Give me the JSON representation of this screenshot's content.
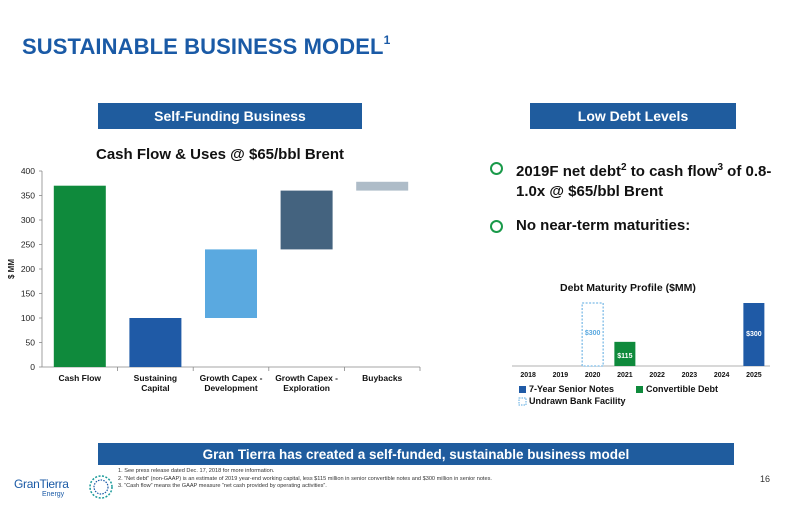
{
  "slide": {
    "title": "SUSTAINABLE BUSINESS MODEL",
    "title_sup": "1",
    "page_number": "16"
  },
  "left_panel": {
    "header": "Self-Funding Business"
  },
  "right_panel": {
    "header": "Low Debt Levels",
    "bullets": [
      {
        "parts": [
          "2019F net debt",
          "2",
          " to cash flow",
          "3",
          " of 0.8-1.0x @ $65/bbl Brent"
        ]
      },
      {
        "parts": [
          "No near-term maturities:"
        ]
      }
    ]
  },
  "chart_data": [
    {
      "type": "bar",
      "subtype": "waterfall",
      "title": "Cash Flow & Uses @ $65/bbl Brent",
      "ylabel": "$ MM",
      "ylim": [
        0,
        400
      ],
      "yticks": [
        0,
        50,
        100,
        150,
        200,
        250,
        300,
        350,
        400
      ],
      "categories": [
        "Cash Flow",
        "Sustaining Capital",
        "Growth Capex - Development",
        "Growth Capex - Exploration",
        "Buybacks"
      ],
      "category_lines": [
        [
          "Cash Flow"
        ],
        [
          "Sustaining",
          "Capital"
        ],
        [
          "Growth Capex -",
          "Development"
        ],
        [
          "Growth Capex -",
          "Exploration"
        ],
        [
          "Buybacks"
        ]
      ],
      "bars": [
        {
          "low": 0,
          "high": 370,
          "color": "#0f8a3c"
        },
        {
          "low": 0,
          "high": 100,
          "color": "#1f5aa6"
        },
        {
          "low": 100,
          "high": 240,
          "color": "#5aa9e0"
        },
        {
          "low": 240,
          "high": 360,
          "color": "#44637f"
        },
        {
          "low": 360,
          "high": 378,
          "color": "#aebcc8"
        }
      ],
      "grid": false
    },
    {
      "type": "bar",
      "title": "Debt Maturity Profile ($MM)",
      "categories": [
        "2018",
        "2019",
        "2020",
        "2021",
        "2022",
        "2023",
        "2024",
        "2025"
      ],
      "series": [
        {
          "name": "7-Year Senior Notes",
          "color": "#1f5aa6",
          "values": [
            0,
            0,
            0,
            0,
            0,
            0,
            0,
            300
          ],
          "labels": [
            "",
            "",
            "",
            "",
            "",
            "",
            "",
            "$300"
          ]
        },
        {
          "name": "Convertible Debt",
          "color": "#0f8a3c",
          "values": [
            0,
            0,
            0,
            115,
            0,
            0,
            0,
            0
          ],
          "labels": [
            "",
            "",
            "",
            "$115",
            "",
            "",
            "",
            ""
          ]
        },
        {
          "name": "Undrawn Bank Facility",
          "color": "#5aa9e0",
          "dashed": true,
          "values": [
            0,
            0,
            300,
            0,
            0,
            0,
            0,
            0
          ],
          "labels": [
            "",
            "",
            "$300",
            "",
            "",
            "",
            "",
            ""
          ]
        }
      ],
      "ylim": [
        0,
        300
      ],
      "legend_position": "bottom"
    }
  ],
  "footer": {
    "banner": "Gran Tierra has created a self-funded, sustainable business model",
    "footnotes": [
      "1.   See press release dated Dec. 17, 2018 for more information.",
      "2.   “Net debt” (non-GAAP) is an estimate of 2019 year-end working capital, less $115 million in senior convertible notes and $300 million in senior notes.",
      "3.   “Cash flow” means the GAAP measure “net cash provided by operating activities”."
    ]
  },
  "logo": {
    "name": "GranTierra",
    "sub": "Energy"
  }
}
